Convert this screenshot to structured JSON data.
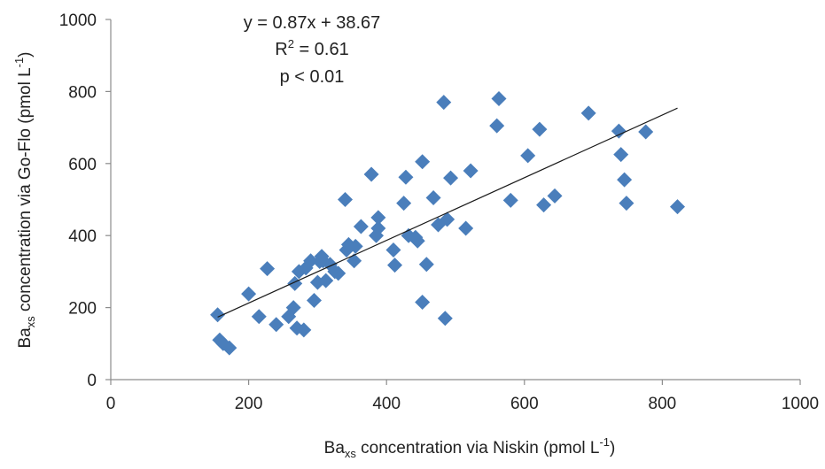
{
  "chart_data": {
    "type": "scatter",
    "title": "",
    "xlabel": {
      "base": "Ba",
      "sub": "xs",
      "mid": " concentration via Niskin (pmol L",
      "sup": "-1",
      "end": ")"
    },
    "ylabel": {
      "base": "Ba",
      "sub": "xs",
      "mid": " concentration via Go-Flo (pmol L",
      "sup": "-1",
      "end": ")"
    },
    "xlim": [
      0,
      1000
    ],
    "ylim": [
      0,
      1000
    ],
    "xticks": [
      "0",
      "200",
      "400",
      "600",
      "800",
      "1000"
    ],
    "yticks": [
      "0",
      "200",
      "400",
      "600",
      "800",
      "1000"
    ],
    "grid": false,
    "marker_color": "#4a7ebb",
    "trendline_color": "#1a1a1a",
    "trendline": {
      "slope": 0.87,
      "intercept": 38.67,
      "x_range": [
        155,
        822
      ]
    },
    "annotation": {
      "equation": "y = 0.87x + 38.67",
      "r2_prefix": "R",
      "r2_sup": "2",
      "r2_value": " = 0.61",
      "p_value": "p < 0.01"
    },
    "x": [
      155,
      158,
      163,
      172,
      200,
      215,
      227,
      240,
      258,
      265,
      267,
      270,
      273,
      280,
      283,
      290,
      295,
      300,
      303,
      306,
      308,
      312,
      318,
      325,
      330,
      340,
      342,
      345,
      353,
      355,
      363,
      378,
      385,
      388,
      388,
      410,
      412,
      425,
      428,
      432,
      442,
      445,
      452,
      452,
      458,
      468,
      475,
      483,
      485,
      488,
      493,
      515,
      522,
      560,
      563,
      580,
      605,
      622,
      628,
      644,
      693,
      737,
      740,
      745,
      748,
      776,
      822
    ],
    "y": [
      180,
      110,
      100,
      88,
      238,
      175,
      308,
      153,
      175,
      200,
      267,
      143,
      300,
      138,
      310,
      330,
      220,
      270,
      328,
      342,
      330,
      275,
      320,
      300,
      295,
      500,
      360,
      375,
      330,
      370,
      425,
      570,
      400,
      450,
      420,
      360,
      318,
      490,
      562,
      400,
      395,
      385,
      605,
      215,
      320,
      505,
      430,
      770,
      170,
      445,
      560,
      420,
      580,
      705,
      780,
      498,
      622,
      695,
      485,
      510,
      740,
      690,
      625,
      555,
      490,
      688,
      480
    ]
  }
}
